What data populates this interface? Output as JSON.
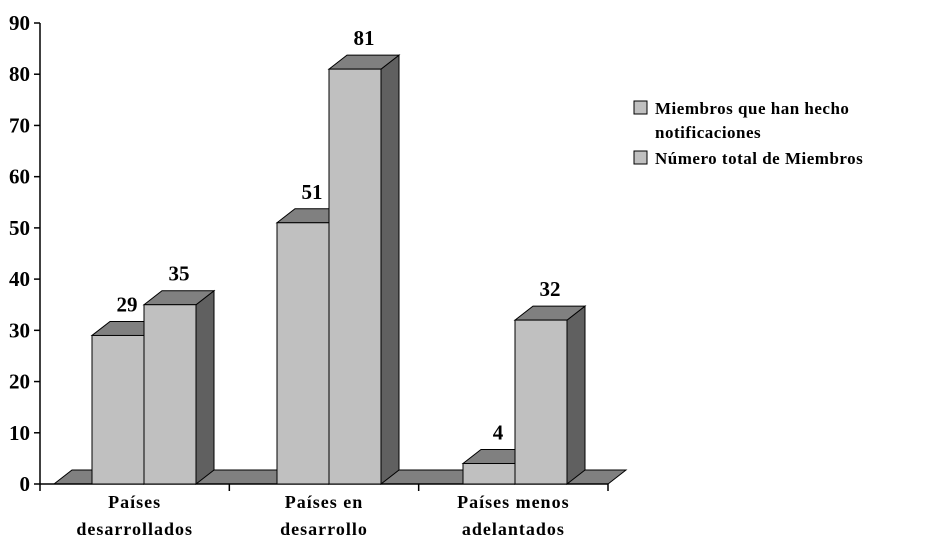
{
  "chart_data": {
    "type": "bar",
    "three_d": true,
    "categories": [
      [
        "Países",
        "desarrollados"
      ],
      [
        "Países en",
        "desarrollo"
      ],
      [
        "Países menos",
        "adelantados"
      ]
    ],
    "series": [
      {
        "name": [
          "Miembros que han hecho",
          "notificaciones"
        ],
        "values": [
          29,
          51,
          4
        ],
        "color": "#c0c0c0"
      },
      {
        "name": [
          "Número total de Miembros"
        ],
        "values": [
          35,
          81,
          32
        ],
        "color": "#c0c0c0"
      }
    ],
    "ylim": [
      0,
      90
    ],
    "yticks": [
      0,
      10,
      20,
      30,
      40,
      50,
      60,
      70,
      80,
      90
    ],
    "data_labels": true,
    "legend_position": "right",
    "grid": false,
    "colors": {
      "bar_front": "#c0c0c0",
      "bar_side": "#606060",
      "bar_top": "#808080",
      "floor": "#808080"
    }
  }
}
